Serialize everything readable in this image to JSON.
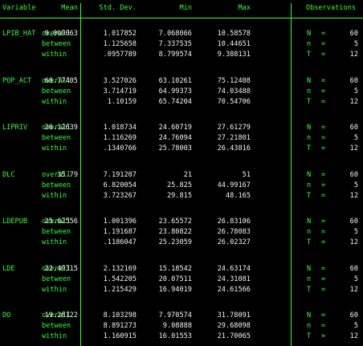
{
  "columns": [
    "Variable",
    "Mean",
    "Std. Dev.",
    "Min",
    "Max",
    "Observations"
  ],
  "variables": [
    {
      "name": "LPIB_HAT",
      "rows": [
        {
          "stat": "overall",
          "mean": "9.069063",
          "sd": "1.017852",
          "min": "7.068066",
          "max": "10.58578",
          "ol": "N",
          "ov": "60"
        },
        {
          "stat": "between",
          "mean": "",
          "sd": "1.125658",
          "min": "7.337535",
          "max": "10.44651",
          "ol": "n",
          "ov": "5"
        },
        {
          "stat": "within",
          "mean": "",
          "sd": ".0957789",
          "min": "8.799574",
          "max": "9.388131",
          "ol": "T",
          "ov": "12"
        }
      ]
    },
    {
      "name": "POP_ACT",
      "rows": [
        {
          "stat": "overall",
          "mean": "68.77405",
          "sd": "3.527026",
          "min": "63.10261",
          "max": "75.12408",
          "ol": "N",
          "ov": "60"
        },
        {
          "stat": "between",
          "mean": "",
          "sd": "3.714719",
          "min": "64.99373",
          "max": "74.03488",
          "ol": "n",
          "ov": "5"
        },
        {
          "stat": "within",
          "mean": "",
          "sd": "1.10159",
          "min": "65.74204",
          "max": "70.54706",
          "ol": "T",
          "ov": "12"
        }
      ]
    },
    {
      "name": "LIPRIV",
      "rows": [
        {
          "stat": "overall",
          "mean": "26.12639",
          "sd": "1.018734",
          "min": "24.60719",
          "max": "27.61279",
          "ol": "N",
          "ov": "60"
        },
        {
          "stat": "between",
          "mean": "",
          "sd": "1.116269",
          "min": "24.76094",
          "max": "27.21801",
          "ol": "n",
          "ov": "5"
        },
        {
          "stat": "within",
          "mean": "",
          "sd": ".1340766",
          "min": "25.78003",
          "max": "26.43816",
          "ol": "T",
          "ov": "12"
        }
      ]
    },
    {
      "name": "DLC",
      "rows": [
        {
          "stat": "overall",
          "mean": "35.79",
          "sd": "7.191207",
          "min": "21",
          "max": "51",
          "ol": "N",
          "ov": "60"
        },
        {
          "stat": "between",
          "mean": "",
          "sd": "6.820054",
          "min": "25.825",
          "max": "44.99167",
          "ol": "n",
          "ov": "5"
        },
        {
          "stat": "within",
          "mean": "",
          "sd": "3.723267",
          "min": "29.815",
          "max": "48.165",
          "ol": "T",
          "ov": "12"
        }
      ]
    },
    {
      "name": "LDEPUB",
      "rows": [
        {
          "stat": "overall",
          "mean": "25.62556",
          "sd": "1.001396",
          "min": "23.65572",
          "max": "26.83106",
          "ol": "N",
          "ov": "60"
        },
        {
          "stat": "between",
          "mean": "",
          "sd": "1.191687",
          "min": "23.80822",
          "max": "26.78083",
          "ol": "n",
          "ov": "5"
        },
        {
          "stat": "within",
          "mean": "",
          "sd": ".1186047",
          "min": "25.23059",
          "max": "26.02327",
          "ol": "T",
          "ov": "12"
        }
      ]
    },
    {
      "name": "LDE",
      "rows": [
        {
          "stat": "overall",
          "mean": "22.49315",
          "sd": "2.132169",
          "min": "15.18542",
          "max": "24.63174",
          "ol": "N",
          "ov": "60"
        },
        {
          "stat": "between",
          "mean": "",
          "sd": "1.542205",
          "min": "20.07511",
          "max": "24.31081",
          "ol": "n",
          "ov": "5"
        },
        {
          "stat": "within",
          "mean": "",
          "sd": "1.215429",
          "min": "16.94019",
          "max": "24.61566",
          "ol": "T",
          "ov": "12"
        }
      ]
    },
    {
      "name": "DO",
      "rows": [
        {
          "stat": "overall",
          "mean": "19.28122",
          "sd": "8.103298",
          "min": "7.970574",
          "max": "31.78091",
          "ol": "N",
          "ov": "60"
        },
        {
          "stat": "between",
          "mean": "",
          "sd": "8.891273",
          "min": "9.08888",
          "max": "29.68098",
          "ol": "n",
          "ov": "5"
        },
        {
          "stat": "within",
          "mean": "",
          "sd": "1.160915",
          "min": "16.01553",
          "max": "21.70065",
          "ol": "T",
          "ov": "12"
        }
      ]
    }
  ],
  "colors": {
    "background": "#000000",
    "label": "#33ff33",
    "value": "#f0f0f0",
    "rule": "#33ff33"
  }
}
